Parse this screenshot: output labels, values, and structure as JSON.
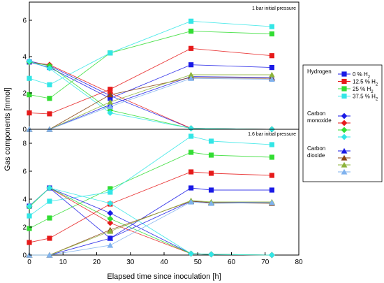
{
  "chart_data": [
    {
      "type": "scatter",
      "panel": "top",
      "annotation": "1 bar initial pressure",
      "xlim": [
        0,
        80
      ],
      "ylim": [
        0,
        7
      ],
      "yticks": [
        0,
        2,
        4,
        6
      ],
      "series": [
        {
          "gas": "Hydrogen",
          "group": "0 % H2",
          "color": "#1a1ae6",
          "marker": "square",
          "x": [
            0,
            6,
            24,
            48,
            72
          ],
          "y": [
            3.7,
            3.4,
            1.7,
            3.55,
            3.4
          ]
        },
        {
          "gas": "Hydrogen",
          "group": "12.5 % H2",
          "color": "#e61a1a",
          "marker": "square",
          "x": [
            0,
            6,
            24,
            48,
            72
          ],
          "y": [
            0.9,
            0.85,
            2.2,
            4.45,
            4.05
          ]
        },
        {
          "gas": "Hydrogen",
          "group": "25 % H2",
          "color": "#33dd33",
          "marker": "square",
          "x": [
            0,
            6,
            24,
            48,
            72
          ],
          "y": [
            1.9,
            1.7,
            4.2,
            5.4,
            5.25
          ]
        },
        {
          "gas": "Hydrogen",
          "group": "37.5 % H2",
          "color": "#33e6e6",
          "marker": "square",
          "x": [
            0,
            6,
            24,
            48,
            72
          ],
          "y": [
            2.8,
            2.45,
            4.2,
            5.95,
            5.65
          ]
        },
        {
          "gas": "Carbon monoxide",
          "group": "0 % H2",
          "color": "#1a1ae6",
          "marker": "diamond",
          "x": [
            0,
            6,
            24,
            48,
            72
          ],
          "y": [
            3.75,
            3.5,
            1.85,
            0.05,
            0
          ]
        },
        {
          "gas": "Carbon monoxide",
          "group": "12.5 % H2",
          "color": "#e61a1a",
          "marker": "diamond",
          "x": [
            0,
            6,
            24,
            48,
            72
          ],
          "y": [
            3.7,
            3.55,
            2.0,
            0.05,
            0
          ]
        },
        {
          "gas": "Carbon monoxide",
          "group": "25 % H2",
          "color": "#33dd33",
          "marker": "diamond",
          "x": [
            0,
            6,
            24,
            48,
            72
          ],
          "y": [
            3.7,
            3.5,
            1.05,
            0.05,
            0
          ]
        },
        {
          "gas": "Carbon monoxide",
          "group": "37.5 % H2",
          "color": "#33e6e6",
          "marker": "diamond",
          "x": [
            0,
            6,
            24,
            48,
            72
          ],
          "y": [
            3.75,
            3.35,
            0.9,
            0.05,
            0
          ]
        },
        {
          "gas": "Carbon dioxide",
          "group": "0 % H2",
          "color": "#1a1ae6",
          "marker": "triangle",
          "x": [
            0,
            6,
            24,
            48,
            72
          ],
          "y": [
            0,
            0,
            1.35,
            2.9,
            2.85
          ]
        },
        {
          "gas": "Carbon dioxide",
          "group": "12.5 % H2",
          "color": "#8b4513",
          "marker": "triangle",
          "x": [
            0,
            6,
            24,
            48,
            72
          ],
          "y": [
            0,
            0,
            1.9,
            2.85,
            2.8
          ]
        },
        {
          "gas": "Carbon dioxide",
          "group": "25 % H2",
          "color": "#8db33a",
          "marker": "triangle",
          "x": [
            0,
            6,
            24,
            48,
            72
          ],
          "y": [
            0,
            0,
            1.5,
            3.0,
            3.0
          ]
        },
        {
          "gas": "Carbon dioxide",
          "group": "37.5 % H2",
          "color": "#7fb2ee",
          "marker": "triangle",
          "x": [
            0,
            6,
            24,
            48,
            72
          ],
          "y": [
            0,
            0,
            1.25,
            2.8,
            2.75
          ]
        }
      ]
    },
    {
      "type": "scatter",
      "panel": "bottom",
      "annotation": "1.6 bar initial pressure",
      "xlim": [
        0,
        80
      ],
      "ylim": [
        0,
        9
      ],
      "yticks": [
        0,
        2,
        4,
        6,
        8
      ],
      "series": [
        {
          "gas": "Hydrogen",
          "group": "0 % H2",
          "color": "#1a1ae6",
          "marker": "square",
          "x": [
            0,
            6,
            24,
            48,
            54,
            72
          ],
          "y": [
            3.5,
            4.8,
            1.2,
            4.8,
            4.65,
            4.65
          ]
        },
        {
          "gas": "Hydrogen",
          "group": "12.5 % H2",
          "color": "#e61a1a",
          "marker": "square",
          "x": [
            0,
            6,
            24,
            48,
            54,
            72
          ],
          "y": [
            0.9,
            1.2,
            3.65,
            5.95,
            5.85,
            5.7
          ]
        },
        {
          "gas": "Hydrogen",
          "group": "25 % H2",
          "color": "#33dd33",
          "marker": "square",
          "x": [
            0,
            6,
            24,
            48,
            54,
            72
          ],
          "y": [
            1.9,
            2.65,
            4.75,
            7.35,
            7.15,
            7.0
          ]
        },
        {
          "gas": "Hydrogen",
          "group": "37.5 % H2",
          "color": "#33e6e6",
          "marker": "square",
          "x": [
            0,
            6,
            24,
            48,
            54,
            72
          ],
          "y": [
            2.8,
            3.85,
            4.5,
            8.5,
            8.15,
            7.9
          ]
        },
        {
          "gas": "Carbon monoxide",
          "group": "0 % H2",
          "color": "#1a1ae6",
          "marker": "diamond",
          "x": [
            0,
            6,
            24,
            48,
            54,
            72
          ],
          "y": [
            3.5,
            4.8,
            3.0,
            0.1,
            0.05,
            0
          ]
        },
        {
          "gas": "Carbon monoxide",
          "group": "12.5 % H2",
          "color": "#e61a1a",
          "marker": "diamond",
          "x": [
            0,
            6,
            24,
            48,
            54,
            72
          ],
          "y": [
            3.5,
            4.8,
            2.3,
            0.1,
            0.05,
            0
          ]
        },
        {
          "gas": "Carbon monoxide",
          "group": "25 % H2",
          "color": "#33dd33",
          "marker": "diamond",
          "x": [
            0,
            6,
            24,
            48,
            54,
            72
          ],
          "y": [
            3.45,
            4.8,
            2.6,
            0.1,
            0.05,
            0
          ]
        },
        {
          "gas": "Carbon monoxide",
          "group": "37.5 % H2",
          "color": "#33e6e6",
          "marker": "diamond",
          "x": [
            0,
            6,
            24,
            48,
            54,
            72
          ],
          "y": [
            3.5,
            4.8,
            3.7,
            0.1,
            0.05,
            0
          ]
        },
        {
          "gas": "Carbon dioxide",
          "group": "0 % H2",
          "color": "#1a1ae6",
          "marker": "triangle",
          "x": [
            0,
            6,
            24,
            48,
            54,
            72
          ],
          "y": [
            0,
            0,
            1.2,
            3.85,
            3.75,
            3.75
          ]
        },
        {
          "gas": "Carbon dioxide",
          "group": "12.5 % H2",
          "color": "#8b4513",
          "marker": "triangle",
          "x": [
            0,
            6,
            24,
            48,
            54,
            72
          ],
          "y": [
            0,
            0,
            1.8,
            3.85,
            3.75,
            3.7
          ]
        },
        {
          "gas": "Carbon dioxide",
          "group": "25 % H2",
          "color": "#8db33a",
          "marker": "triangle",
          "x": [
            0,
            6,
            24,
            48,
            54,
            72
          ],
          "y": [
            0,
            0,
            1.7,
            3.9,
            3.8,
            3.8
          ]
        },
        {
          "gas": "Carbon dioxide",
          "group": "37.5 % H2",
          "color": "#7fb2ee",
          "marker": "triangle",
          "x": [
            0,
            6,
            24,
            48,
            54,
            72
          ],
          "y": [
            0,
            0,
            0.7,
            3.8,
            3.7,
            3.75
          ]
        }
      ]
    }
  ],
  "axes": {
    "xlabel": "Elapsed time since inoculation [h]",
    "ylabel": "Gas components [mmol]",
    "xticks": [
      0,
      10,
      20,
      30,
      40,
      50,
      60,
      70,
      80
    ]
  },
  "legend": {
    "placement": "right",
    "hydrogen_title": "Hydrogen",
    "co_title_line1": "Carbon",
    "co_title_line2": "monoxide",
    "co2_title_line1": "Carbon",
    "co2_title_line2": "dioxide",
    "hydrogen_entries": [
      {
        "prefix": "0 % H",
        "sub": "2",
        "color": "#1a1ae6"
      },
      {
        "prefix": "12.5 % H",
        "sub": "2",
        "color": "#e61a1a"
      },
      {
        "prefix": "25 % H",
        "sub": "2",
        "color": "#33dd33"
      },
      {
        "prefix": "37.5 % H",
        "sub": "2",
        "color": "#33e6e6"
      }
    ],
    "co_colors": [
      "#1a1ae6",
      "#e61a1a",
      "#33dd33",
      "#33e6e6"
    ],
    "co2_colors": [
      "#1a1ae6",
      "#8b4513",
      "#8db33a",
      "#7fb2ee"
    ]
  }
}
